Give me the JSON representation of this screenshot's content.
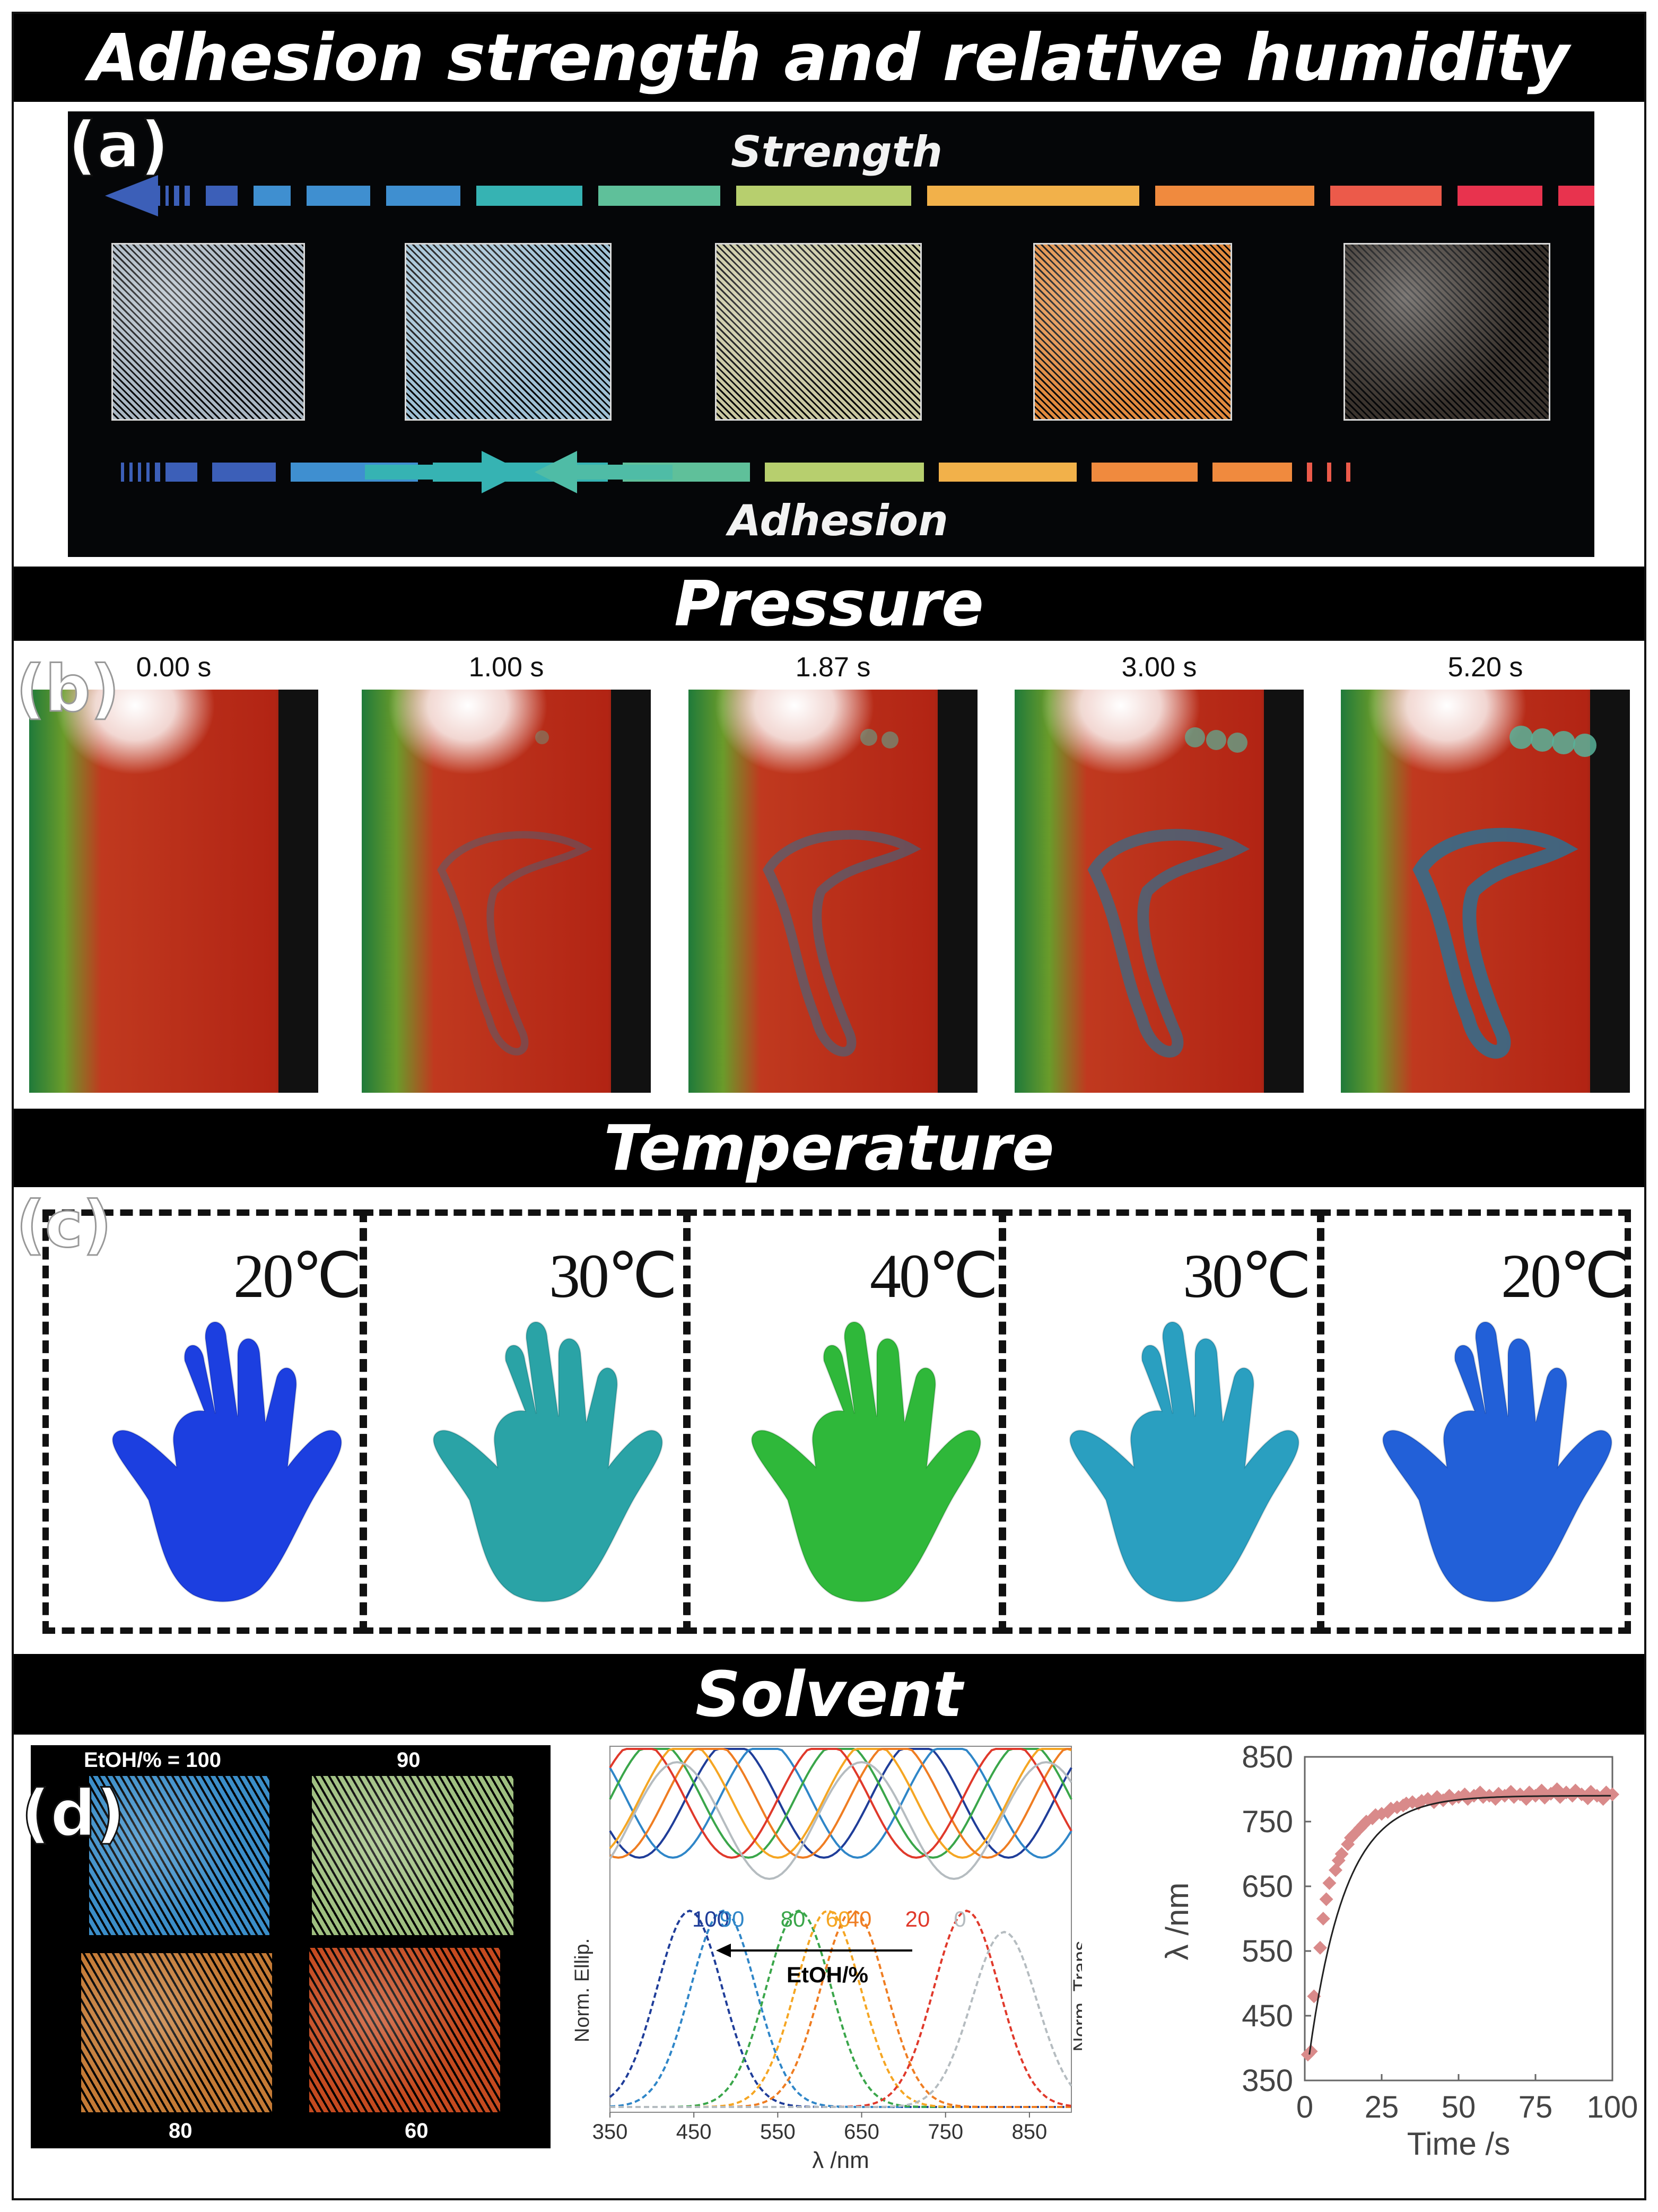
{
  "banners": {
    "adhesion": "Adhesion strength and relative humidity",
    "pressure": "Pressure",
    "temperature": "Temperature",
    "solvent": "Solvent"
  },
  "panel_a": {
    "letter": "(a)",
    "strength_label": "Strength",
    "adhesion_label": "Adhesion",
    "swatch_colors": [
      "#a9b6c2",
      "#9fc0d4",
      "#c9c7a0",
      "#e18a3e",
      "#3a332d"
    ]
  },
  "panel_b": {
    "letter": "(b)",
    "times": [
      "0.00 s",
      "1.00 s",
      "1.87 s",
      "3.00 s",
      "5.20 s"
    ]
  },
  "panel_c": {
    "letter": "(c)",
    "temps": [
      "20℃",
      "30℃",
      "40℃",
      "30℃",
      "20℃"
    ],
    "hand_colors": [
      "#1c3fe0",
      "#2aa3a6",
      "#2fb83a",
      "#2a9fc0",
      "#2260d8"
    ]
  },
  "panel_d": {
    "letter": "(d)",
    "photo_labels": [
      "EtOH/% = 100",
      "90",
      "80",
      "60"
    ],
    "photo_colors": [
      "#3b8ec9",
      "#9fbf80",
      "#c47a35",
      "#c54a1f"
    ]
  },
  "chart_data": [
    {
      "type": "line",
      "title": "",
      "xlabel": "λ /nm",
      "ylabel_left": "Norm. Ellip.",
      "ylabel_right": "Norm. Trans.",
      "xlim": [
        350,
        900
      ],
      "xticks": [
        350,
        450,
        550,
        650,
        750,
        850
      ],
      "annotation": "EtOH/%",
      "series_labels": [
        "100",
        "90",
        "80",
        "60",
        "40",
        "20",
        "0"
      ],
      "series_colors": [
        "#1f3d99",
        "#2f86c8",
        "#3aa64a",
        "#f5a623",
        "#ef7d22",
        "#e0392b",
        "#b5bcc0"
      ],
      "peak_nm": [
        445,
        485,
        575,
        610,
        640,
        775,
        820
      ]
    },
    {
      "type": "scatter",
      "title": "",
      "xlabel": "Time /s",
      "ylabel": "λ /nm",
      "xlim": [
        0,
        100
      ],
      "ylim": [
        350,
        850
      ],
      "xticks": [
        0,
        25,
        50,
        75,
        100
      ],
      "yticks": [
        350,
        450,
        550,
        650,
        750,
        850
      ],
      "fit": {
        "baseline": 390,
        "plateau": 790,
        "tau_s": 7
      },
      "points": [
        [
          1,
          390
        ],
        [
          2,
          395
        ],
        [
          3,
          480
        ],
        [
          5,
          555
        ],
        [
          6,
          600
        ],
        [
          7,
          630
        ],
        [
          8,
          655
        ],
        [
          10,
          675
        ],
        [
          11,
          690
        ],
        [
          12,
          700
        ],
        [
          14,
          715
        ],
        [
          15,
          725
        ],
        [
          16,
          730
        ],
        [
          18,
          740
        ],
        [
          19,
          745
        ],
        [
          20,
          750
        ],
        [
          22,
          755
        ],
        [
          23,
          760
        ],
        [
          25,
          762
        ],
        [
          27,
          765
        ],
        [
          28,
          770
        ],
        [
          30,
          772
        ],
        [
          32,
          775
        ],
        [
          33,
          778
        ],
        [
          35,
          780
        ],
        [
          37,
          778
        ],
        [
          38,
          782
        ],
        [
          40,
          785
        ],
        [
          42,
          780
        ],
        [
          43,
          788
        ],
        [
          45,
          783
        ],
        [
          47,
          790
        ],
        [
          48,
          785
        ],
        [
          50,
          788
        ],
        [
          52,
          792
        ],
        [
          53,
          785
        ],
        [
          55,
          790
        ],
        [
          57,
          795
        ],
        [
          58,
          788
        ],
        [
          60,
          790
        ],
        [
          62,
          785
        ],
        [
          63,
          793
        ],
        [
          65,
          790
        ],
        [
          67,
          796
        ],
        [
          68,
          788
        ],
        [
          70,
          792
        ],
        [
          72,
          785
        ],
        [
          73,
          795
        ],
        [
          75,
          790
        ],
        [
          77,
          798
        ],
        [
          78,
          787
        ],
        [
          80,
          793
        ],
        [
          82,
          800
        ],
        [
          83,
          788
        ],
        [
          85,
          795
        ],
        [
          87,
          790
        ],
        [
          88,
          798
        ],
        [
          90,
          792
        ],
        [
          92,
          786
        ],
        [
          93,
          796
        ],
        [
          95,
          790
        ],
        [
          97,
          785
        ],
        [
          98,
          795
        ],
        [
          100,
          792
        ]
      ]
    }
  ]
}
